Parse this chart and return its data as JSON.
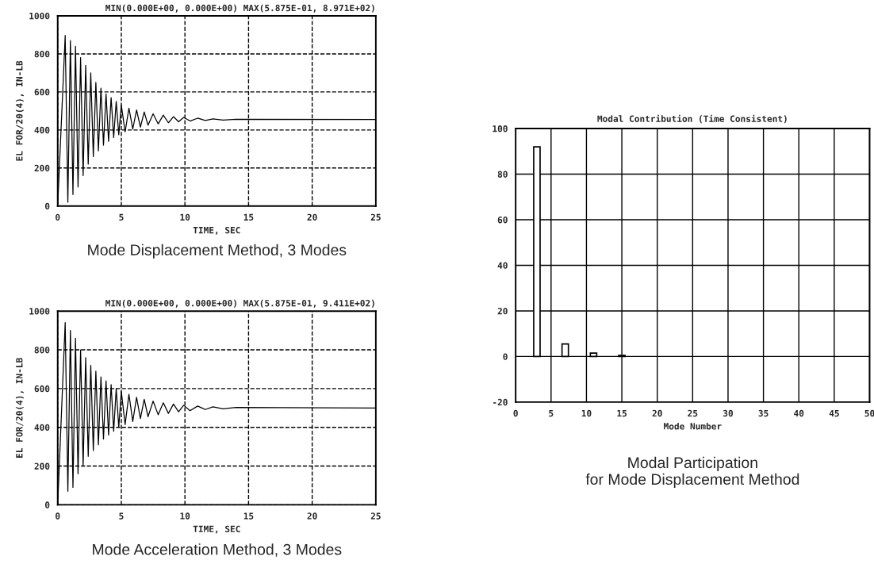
{
  "chart_data": [
    {
      "type": "line",
      "subtitle": "MIN(0.000E+00, 0.000E+00) MAX(5.875E-01, 8.971E+02)",
      "xlabel": "TIME, SEC",
      "ylabel": "EL FOR/20(4), IN-LB",
      "annotations": [
        "Mode Displacement Method, 3 Modes"
      ],
      "xlim": [
        0,
        25
      ],
      "xticks": [
        0,
        5,
        10,
        15,
        20,
        25
      ],
      "ylim": [
        0,
        1000
      ],
      "yticks": [
        0,
        200,
        400,
        600,
        800,
        1000
      ],
      "grid": true,
      "line_style": "solid",
      "series": [
        {
          "color": "#000000",
          "x": [
            0,
            0.59,
            0.8,
            1.0,
            1.2,
            1.4,
            1.6,
            1.8,
            2.0,
            2.2,
            2.4,
            2.6,
            2.8,
            3.0,
            3.2,
            3.4,
            3.6,
            3.8,
            4.0,
            4.2,
            4.4,
            4.6,
            4.8,
            5.0,
            5.3,
            5.6,
            5.9,
            6.2,
            6.5,
            6.8,
            7.1,
            7.5,
            7.9,
            8.3,
            8.7,
            9.1,
            9.5,
            9.9,
            10.4,
            11,
            11.6,
            12.2,
            13,
            14,
            25
          ],
          "values": [
            0,
            897,
            20,
            870,
            60,
            840,
            100,
            780,
            160,
            740,
            220,
            700,
            260,
            650,
            290,
            620,
            320,
            590,
            340,
            570,
            360,
            550,
            375,
            530,
            390,
            515,
            405,
            505,
            415,
            495,
            425,
            485,
            432,
            478,
            438,
            470,
            443,
            466,
            447,
            462,
            450,
            458,
            452,
            456,
            455
          ]
        }
      ]
    },
    {
      "type": "line",
      "subtitle": "MIN(0.000E+00, 0.000E+00) MAX(5.875E-01, 9.411E+02)",
      "xlabel": "TIME, SEC",
      "ylabel": "EL FOR/20(4), IN-LB",
      "annotations": [
        "Mode Acceleration Method, 3 Modes"
      ],
      "xlim": [
        0,
        25
      ],
      "xticks": [
        0,
        5,
        10,
        15,
        20,
        25
      ],
      "ylim": [
        0,
        1000
      ],
      "yticks": [
        0,
        200,
        400,
        600,
        800,
        1000
      ],
      "grid": true,
      "line_style": "solid",
      "series": [
        {
          "color": "#000000",
          "x": [
            0,
            0.59,
            0.8,
            1.0,
            1.2,
            1.4,
            1.6,
            1.8,
            2.0,
            2.2,
            2.4,
            2.6,
            2.8,
            3.0,
            3.2,
            3.4,
            3.6,
            3.8,
            4.0,
            4.2,
            4.4,
            4.6,
            4.8,
            5.0,
            5.3,
            5.6,
            5.9,
            6.2,
            6.5,
            6.8,
            7.1,
            7.5,
            7.9,
            8.3,
            8.7,
            9.1,
            9.5,
            9.9,
            10.4,
            11,
            11.6,
            12.2,
            13,
            14,
            25
          ],
          "values": [
            0,
            941,
            70,
            900,
            90,
            860,
            160,
            800,
            200,
            760,
            250,
            720,
            280,
            690,
            310,
            660,
            340,
            640,
            360,
            620,
            380,
            600,
            400,
            585,
            415,
            570,
            430,
            555,
            445,
            545,
            455,
            535,
            465,
            527,
            472,
            520,
            480,
            514,
            486,
            510,
            492,
            506,
            496,
            503,
            500
          ]
        }
      ]
    },
    {
      "type": "bar",
      "title": "Modal Contribution (Time Consistent)",
      "xlabel": "Mode Number",
      "annotations": [
        "Modal Participation\nfor Mode Displacement Method"
      ],
      "x": [
        3,
        7,
        11,
        15
      ],
      "values": [
        92,
        5.5,
        1.5,
        0.5
      ],
      "color": "#ffffff",
      "xlim": [
        0,
        50
      ],
      "xticks": [
        0,
        5,
        10,
        15,
        20,
        25,
        30,
        35,
        40,
        45,
        50
      ],
      "ylim": [
        -20,
        100
      ],
      "yticks": [
        -20,
        0,
        20,
        40,
        60,
        80,
        100
      ],
      "grid": true
    }
  ]
}
